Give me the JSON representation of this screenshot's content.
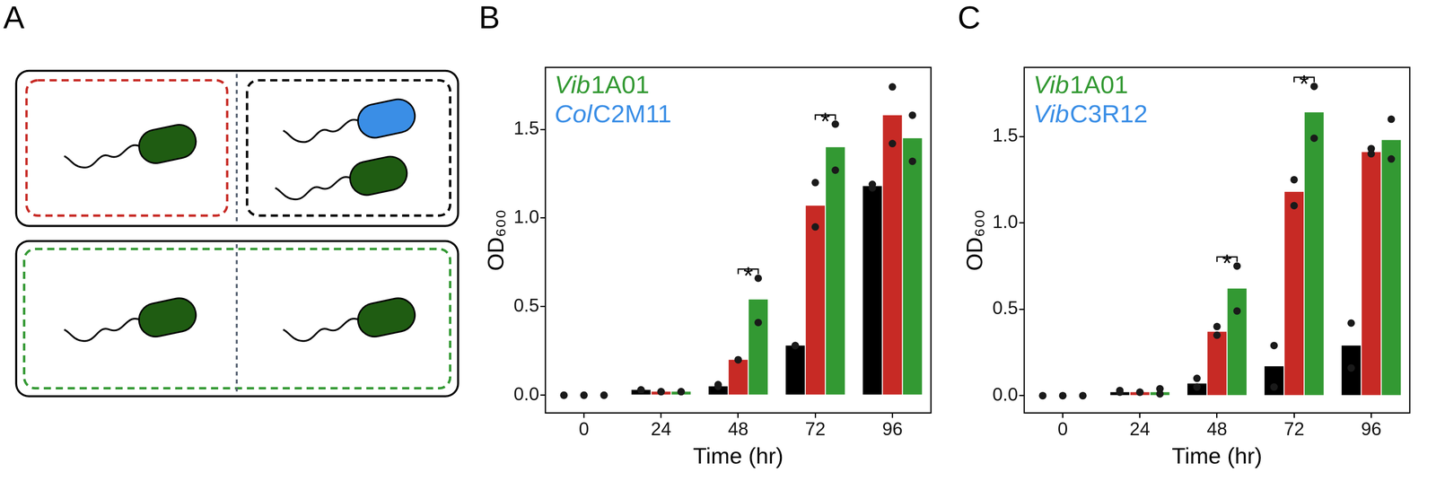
{
  "diagram": {
    "label": "A"
  },
  "chart_data": [
    {
      "panel": "B",
      "type": "bar",
      "labels_in_plot": [
        {
          "text": "Vib1A01",
          "color": "#339933"
        },
        {
          "text": "ColC2M11",
          "color": "#3a8ee6"
        }
      ],
      "categories": [
        "0",
        "24",
        "48",
        "72",
        "96"
      ],
      "x_label": "Time (hr)",
      "y_label": "OD₆₀₀",
      "ylim": [
        -0.1,
        1.85
      ],
      "yticks": [
        {
          "value": 0,
          "label": "0.0"
        },
        {
          "value": 0.5,
          "label": "0.5"
        },
        {
          "value": 1,
          "label": "1.0"
        },
        {
          "value": 1.5,
          "label": "1.5"
        }
      ],
      "grid": false,
      "series": [
        {
          "color": "#000000",
          "values": [
            0,
            0.03,
            0.05,
            0.28,
            1.18
          ],
          "replicates": [
            [
              0,
              0
            ],
            [
              0.03,
              0.03
            ],
            [
              0.06,
              0.05
            ],
            [
              0.28,
              0.28
            ],
            [
              1.19,
              1.17
            ]
          ]
        },
        {
          "color": "#c72a25",
          "values": [
            0,
            0.02,
            0.2,
            1.07,
            1.58
          ],
          "replicates": [
            [
              0,
              0
            ],
            [
              0.02,
              0.02
            ],
            [
              0.2,
              0.2
            ],
            [
              1.2,
              0.95
            ],
            [
              1.74,
              1.42
            ]
          ]
        },
        {
          "color": "#339933",
          "values": [
            0,
            0.02,
            0.54,
            1.4,
            1.45
          ],
          "replicates": [
            [
              0,
              0
            ],
            [
              0.02,
              0.02
            ],
            [
              0.66,
              0.41
            ],
            [
              1.53,
              1.27
            ],
            [
              1.58,
              1.32
            ]
          ]
        }
      ],
      "significance": [
        {
          "category": "48",
          "text": "*"
        },
        {
          "category": "72",
          "text": "*"
        }
      ]
    },
    {
      "panel": "C",
      "type": "bar",
      "labels_in_plot": [
        {
          "text": "Vib1A01",
          "color": "#339933"
        },
        {
          "text": "VibC3R12",
          "color": "#3a8ee6"
        }
      ],
      "categories": [
        "0",
        "24",
        "48",
        "72",
        "96"
      ],
      "x_label": "Time (hr)",
      "y_label": "OD₆₀₀",
      "ylim": [
        -0.1,
        1.9
      ],
      "yticks": [
        {
          "value": 0,
          "label": "0.0"
        },
        {
          "value": 0.5,
          "label": "0.5"
        },
        {
          "value": 1,
          "label": "1.0"
        },
        {
          "value": 1.5,
          "label": "1.5"
        }
      ],
      "grid": false,
      "series": [
        {
          "color": "#000000",
          "values": [
            0,
            0.02,
            0.07,
            0.17,
            0.29
          ],
          "replicates": [
            [
              0,
              0
            ],
            [
              0.03,
              0.02
            ],
            [
              0.1,
              0.05
            ],
            [
              0.29,
              0.05
            ],
            [
              0.42,
              0.16
            ]
          ]
        },
        {
          "color": "#c72a25",
          "values": [
            0,
            0.02,
            0.37,
            1.18,
            1.41
          ],
          "replicates": [
            [
              0,
              0
            ],
            [
              0.02,
              0.02
            ],
            [
              0.4,
              0.35
            ],
            [
              1.25,
              1.1
            ],
            [
              1.43,
              1.4
            ]
          ]
        },
        {
          "color": "#339933",
          "values": [
            0,
            0.02,
            0.62,
            1.64,
            1.48
          ],
          "replicates": [
            [
              0,
              0
            ],
            [
              0.04,
              0.01
            ],
            [
              0.75,
              0.49
            ],
            [
              1.79,
              1.49
            ],
            [
              1.6,
              1.37
            ]
          ]
        }
      ],
      "significance": [
        {
          "category": "48",
          "text": "*"
        },
        {
          "category": "72",
          "text": "*"
        }
      ]
    }
  ]
}
